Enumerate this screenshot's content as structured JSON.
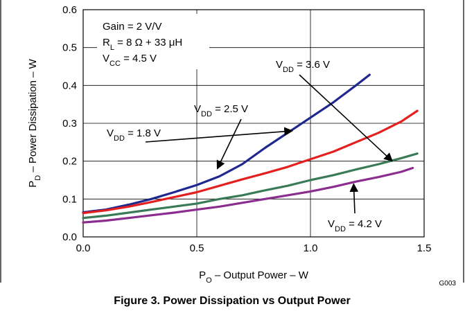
{
  "chart_data": {
    "type": "line",
    "xlabel": {
      "main": "P",
      "sub": "O",
      "rest": " – Output Power – W"
    },
    "ylabel": {
      "main": "P",
      "sub": "D",
      "rest": " – Power Dissipation – W"
    },
    "xlim": [
      0,
      1.5
    ],
    "ylim": [
      0,
      0.6
    ],
    "x_ticks": [
      "0.0",
      "0.5",
      "1.0",
      "1.5"
    ],
    "y_ticks": [
      "0.0",
      "0.1",
      "0.2",
      "0.3",
      "0.4",
      "0.5",
      "0.6"
    ],
    "grid": true,
    "conditions": [
      {
        "main": "Gain = 2 V/V"
      },
      {
        "main": "R",
        "sub": "L",
        "rest": " = 8 Ω + 33 μH"
      },
      {
        "main": "V",
        "sub": "CC",
        "rest": " = 4.5 V"
      }
    ],
    "series": [
      {
        "name": {
          "main": "V",
          "sub": "DD",
          "rest": " = 1.8 V"
        },
        "color": "#1e2890",
        "x": [
          0,
          0.1,
          0.2,
          0.3,
          0.4,
          0.5,
          0.6,
          0.7,
          0.8,
          0.9,
          1.0,
          1.1,
          1.2,
          1.26
        ],
        "y": [
          0.065,
          0.072,
          0.085,
          0.1,
          0.118,
          0.137,
          0.16,
          0.192,
          0.235,
          0.275,
          0.315,
          0.355,
          0.4,
          0.428
        ]
      },
      {
        "name": {
          "main": "V",
          "sub": "DD",
          "rest": " = 2.5 V"
        },
        "color": "#e41f1f",
        "x": [
          0,
          0.1,
          0.2,
          0.3,
          0.4,
          0.5,
          0.6,
          0.7,
          0.8,
          0.9,
          1.0,
          1.1,
          1.2,
          1.3,
          1.4,
          1.47
        ],
        "y": [
          0.063,
          0.07,
          0.08,
          0.092,
          0.105,
          0.118,
          0.135,
          0.152,
          0.168,
          0.185,
          0.205,
          0.225,
          0.25,
          0.275,
          0.305,
          0.333
        ]
      },
      {
        "name": {
          "main": "V",
          "sub": "DD",
          "rest": " = 3.6 V"
        },
        "color": "#3a7a56",
        "x": [
          0,
          0.1,
          0.2,
          0.3,
          0.4,
          0.5,
          0.6,
          0.7,
          0.8,
          0.9,
          1.0,
          1.1,
          1.2,
          1.3,
          1.4,
          1.47
        ],
        "y": [
          0.05,
          0.056,
          0.064,
          0.072,
          0.08,
          0.088,
          0.1,
          0.11,
          0.123,
          0.135,
          0.15,
          0.163,
          0.178,
          0.192,
          0.208,
          0.22
        ]
      },
      {
        "name": {
          "main": "V",
          "sub": "DD",
          "rest": " = 4.2 V"
        },
        "color": "#8a2d8e",
        "x": [
          0,
          0.1,
          0.2,
          0.3,
          0.4,
          0.5,
          0.6,
          0.7,
          0.8,
          0.9,
          1.0,
          1.1,
          1.2,
          1.3,
          1.4,
          1.45
        ],
        "y": [
          0.038,
          0.043,
          0.05,
          0.057,
          0.064,
          0.072,
          0.08,
          0.09,
          0.1,
          0.11,
          0.12,
          0.132,
          0.146,
          0.158,
          0.172,
          0.182
        ]
      }
    ],
    "annotations": [
      {
        "series": 0,
        "x": 0.92,
        "y": 0.28
      },
      {
        "series": 1,
        "x": 0.59,
        "y": 0.18
      },
      {
        "series": 2,
        "x": 1.36,
        "y": 0.2
      },
      {
        "series": 3,
        "x": 1.19,
        "y": 0.14
      }
    ],
    "figure_code": "G003",
    "caption": "Figure 3. Power Dissipation vs Output Power"
  }
}
